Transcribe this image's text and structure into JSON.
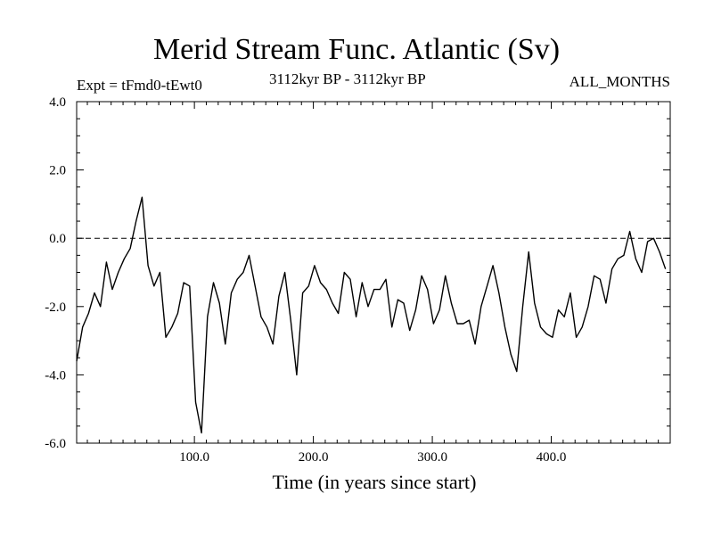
{
  "chart_data": {
    "type": "line",
    "title": "Merid Stream Func. Atlantic (Sv)",
    "experiment_label": "Expt = tFmd0-tEwt0",
    "period_label": "3112kyr BP - 3112kyr BP",
    "months_label": "ALL_MONTHS",
    "xlabel": "Time (in years since start)",
    "ylabel": "",
    "xlim": [
      1,
      500
    ],
    "ylim": [
      -6.0,
      4.0
    ],
    "x_ticks": [
      100.0,
      200.0,
      300.0,
      400.0
    ],
    "x_tick_labels": [
      "100.0",
      "200.0",
      "300.0",
      "400.0"
    ],
    "y_ticks": [
      -6.0,
      -4.0,
      -2.0,
      0.0,
      2.0,
      4.0
    ],
    "y_tick_labels": [
      "-6.0",
      "-4.0",
      "-2.0",
      "0.0",
      "2.0",
      "4.0"
    ],
    "reference_line": 0.0,
    "series": [
      {
        "name": "Merid Stream Func. Atlantic",
        "x_start": 1,
        "x_step": 5,
        "values": [
          -3.6,
          -2.6,
          -2.2,
          -1.6,
          -2.0,
          -0.7,
          -1.5,
          -1.0,
          -0.6,
          -0.3,
          0.5,
          1.2,
          -0.8,
          -1.4,
          -1.0,
          -2.9,
          -2.6,
          -2.2,
          -1.3,
          -1.4,
          -4.8,
          -5.7,
          -2.3,
          -1.3,
          -1.9,
          -3.1,
          -1.6,
          -1.2,
          -1.0,
          -0.5,
          -1.4,
          -2.3,
          -2.6,
          -3.1,
          -1.7,
          -1.0,
          -2.4,
          -4.0,
          -1.6,
          -1.4,
          -0.8,
          -1.3,
          -1.5,
          -1.9,
          -2.2,
          -1.0,
          -1.2,
          -2.3,
          -1.3,
          -2.0,
          -1.5,
          -1.5,
          -1.2,
          -2.6,
          -1.8,
          -1.9,
          -2.7,
          -2.1,
          -1.1,
          -1.5,
          -2.5,
          -2.1,
          -1.1,
          -1.9,
          -2.5,
          -2.5,
          -2.4,
          -3.1,
          -2.0,
          -1.4,
          -0.8,
          -1.6,
          -2.6,
          -3.4,
          -3.9,
          -2.0,
          -0.4,
          -1.9,
          -2.6,
          -2.8,
          -2.9,
          -2.1,
          -2.3,
          -1.6,
          -2.9,
          -2.6,
          -2.0,
          -1.1,
          -1.2,
          -1.9,
          -0.9,
          -0.6,
          -0.5,
          0.2,
          -0.6,
          -1.0,
          -0.1,
          0.0,
          -0.4,
          -0.9
        ]
      }
    ]
  }
}
